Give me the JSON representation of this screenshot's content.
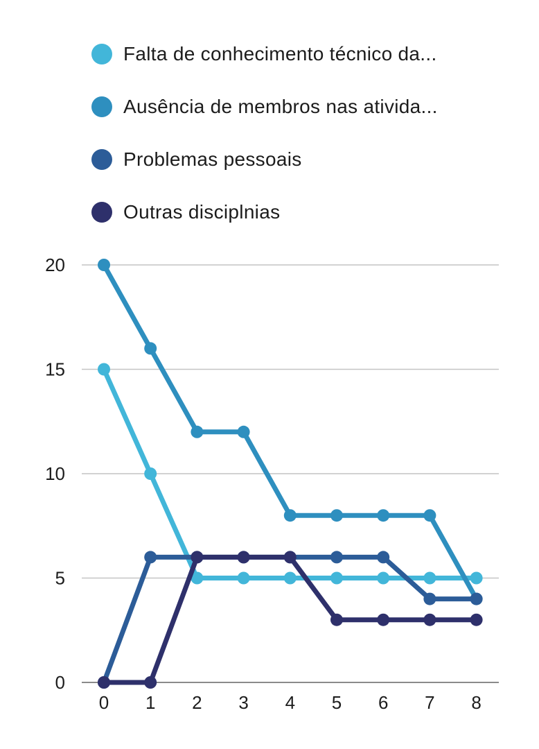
{
  "chart_data": {
    "type": "line",
    "x": [
      0,
      1,
      2,
      3,
      4,
      5,
      6,
      7,
      8
    ],
    "ylim": [
      0,
      20
    ],
    "yticks": [
      0,
      5,
      10,
      15,
      20
    ],
    "grid": true,
    "legend_position": "top",
    "series": [
      {
        "name": "Falta de conhecimento técnico da...",
        "color": "#42b6d9",
        "values": [
          15,
          10,
          5,
          5,
          5,
          5,
          5,
          5,
          5
        ]
      },
      {
        "name": "Ausência de membros nas ativida...",
        "color": "#2e8fbf",
        "values": [
          20,
          16,
          12,
          12,
          8,
          8,
          8,
          8,
          4
        ]
      },
      {
        "name": "Problemas pessoais",
        "color": "#2c5c98",
        "values": [
          0,
          6,
          6,
          6,
          6,
          6,
          6,
          4,
          4
        ]
      },
      {
        "name": "Outras disciplnias",
        "color": "#2e306b",
        "values": [
          0,
          0,
          6,
          6,
          6,
          3,
          3,
          3,
          3
        ]
      }
    ]
  }
}
